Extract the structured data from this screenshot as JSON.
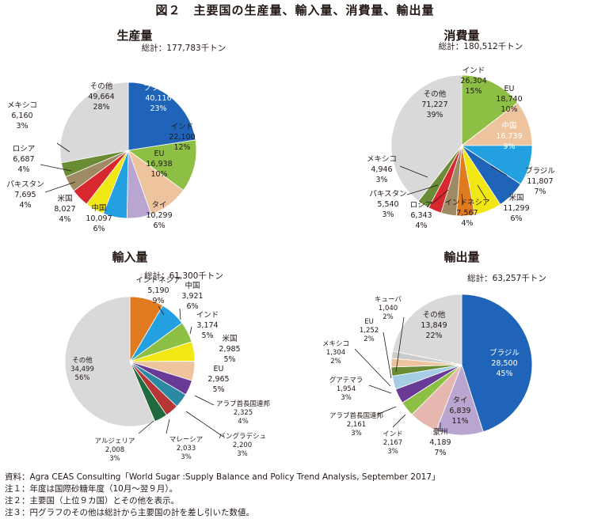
{
  "figure_title": "図２　主要国の生産量、輸入量、消費量、輸出量",
  "notes": [
    "資料：Agra CEAS Consulting「World Sugar :Supply Balance and Policy Trend Analysis, September 2017」",
    "注１：年度は国際砂糖年度（10月～翌９月）。",
    "注２：主要国（上位９カ国）とその他を表示。",
    "注３：円グラフのその他は総計から主要国の計を差し引いた数値。"
  ],
  "colors": {
    "ブラジル": "#1f64b8",
    "インド": "#8dbf45",
    "EU": "#eec49f",
    "タイ": "#b8a6d1",
    "中国": "#23a0df",
    "米国": "#f0e714",
    "パキスタン": "#d7272f",
    "ロシア": "#9f8b63",
    "メキシコ": "#698c34",
    "その他": "#d9d9d9",
    "インドネシア": "#e07b1f",
    "アラブ首長国連邦": "#6a3b96",
    "バングラデシュ": "#2a89a3",
    "マレーシア": "#b53635",
    "アルジェリア": "#1f6b3f",
    "豪州": "#e6b7ae",
    "グアテマラ": "#a5cde3"
  },
  "chart_data": [
    {
      "type": "pie",
      "title": "生産量",
      "total": "総計：177,783千トン",
      "slices": [
        {
          "name": "ブラジル",
          "value": 40116,
          "share": "23%"
        },
        {
          "name": "インド",
          "value": 22100,
          "share": "12%"
        },
        {
          "name": "EU",
          "value": 16938,
          "share": "10%"
        },
        {
          "name": "タイ",
          "value": 10299,
          "share": "6%"
        },
        {
          "name": "中国",
          "value": 10097,
          "share": "6%"
        },
        {
          "name": "米国",
          "value": 8027,
          "share": "4%"
        },
        {
          "name": "パキスタン",
          "value": 7695,
          "share": "4%"
        },
        {
          "name": "ロシア",
          "value": 6687,
          "share": "4%"
        },
        {
          "name": "メキシコ",
          "value": 6160,
          "share": "3%"
        },
        {
          "name": "その他",
          "value": 49664,
          "share": "28%"
        }
      ]
    },
    {
      "type": "pie",
      "title": "消費量",
      "total": "総計：180,512千トン",
      "slices": [
        {
          "name": "インド",
          "value": 26304,
          "share": "15%"
        },
        {
          "name": "EU",
          "value": 18740,
          "share": "10%"
        },
        {
          "name": "中国",
          "value": 16739,
          "share": "9%"
        },
        {
          "name": "ブラジル",
          "value": 11807,
          "share": "7%"
        },
        {
          "name": "米国",
          "value": 11299,
          "share": "6%"
        },
        {
          "name": "インドネシア",
          "value": 7567,
          "share": "4%"
        },
        {
          "name": "ロシア",
          "value": 6343,
          "share": "4%"
        },
        {
          "name": "パキスタン",
          "value": 5540,
          "share": "3%"
        },
        {
          "name": "メキシコ",
          "value": 4946,
          "share": "3%"
        },
        {
          "name": "その他",
          "value": 71227,
          "share": "39%"
        }
      ]
    },
    {
      "type": "pie",
      "title": "輸入量",
      "total": "総計：61,300千トン",
      "slices": [
        {
          "name": "インドネシア",
          "value": 5190,
          "share": "9%"
        },
        {
          "name": "中国",
          "value": 3921,
          "share": "6%"
        },
        {
          "name": "インド",
          "value": 3174,
          "share": "5%"
        },
        {
          "name": "米国",
          "value": 2985,
          "share": "5%"
        },
        {
          "name": "EU",
          "value": 2965,
          "share": "5%"
        },
        {
          "name": "アラブ首長国連邦",
          "value": 2325,
          "share": "4%"
        },
        {
          "name": "バングラデシュ",
          "value": 2200,
          "share": "3%"
        },
        {
          "name": "マレーシア",
          "value": 2033,
          "share": "3%"
        },
        {
          "name": "アルジェリア",
          "value": 2008,
          "share": "3%"
        },
        {
          "name": "その他",
          "value": 34499,
          "share": "56%"
        }
      ]
    },
    {
      "type": "pie",
      "title": "輸出量",
      "total": "総計：63,257千トン",
      "slices": [
        {
          "name": "ブラジル",
          "value": 28500,
          "share": "45%"
        },
        {
          "name": "タイ",
          "value": 6839,
          "share": "11%"
        },
        {
          "name": "豪州",
          "value": 4189,
          "share": "7%"
        },
        {
          "name": "インド",
          "value": 2167,
          "share": "3%"
        },
        {
          "name": "アラブ首長国連邦",
          "value": 2161,
          "share": "3%"
        },
        {
          "name": "グアテマラ",
          "value": 1954,
          "share": "3%"
        },
        {
          "name": "メキシコ",
          "value": 1304,
          "share": "2%"
        },
        {
          "name": "EU",
          "value": 1252,
          "share": "2%"
        },
        {
          "name": "キューバ",
          "value": 1040,
          "share": "2%"
        },
        {
          "name": "その他",
          "value": 13849,
          "share": "22%"
        }
      ]
    }
  ]
}
